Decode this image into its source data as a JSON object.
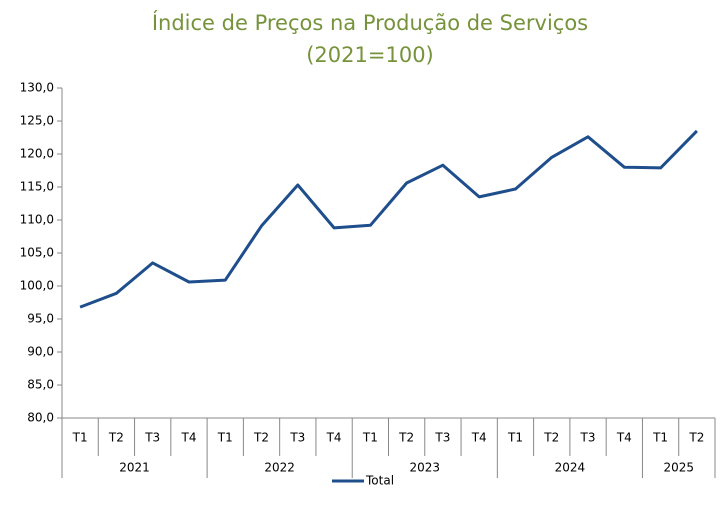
{
  "chart_data": {
    "type": "line",
    "title": "Índice de Preços na Produção de Serviços",
    "subtitle": "(2021=100)",
    "groups": [
      {
        "label": "2021",
        "categories": [
          "T1",
          "T2",
          "T3",
          "T4"
        ]
      },
      {
        "label": "2022",
        "categories": [
          "T1",
          "T2",
          "T3",
          "T4"
        ]
      },
      {
        "label": "2023",
        "categories": [
          "T1",
          "T2",
          "T3",
          "T4"
        ]
      },
      {
        "label": "2024",
        "categories": [
          "T1",
          "T2",
          "T3",
          "T4"
        ]
      },
      {
        "label": "2025",
        "categories": [
          "T1",
          "T2"
        ]
      }
    ],
    "series": [
      {
        "name": "Total",
        "color": "#1f4e8c",
        "values": [
          96.8,
          98.9,
          103.5,
          100.6,
          100.9,
          109.1,
          115.3,
          108.8,
          109.2,
          115.6,
          118.3,
          113.5,
          114.7,
          119.5,
          122.6,
          118.0,
          117.9,
          123.5
        ]
      }
    ],
    "ylim": [
      80,
      130
    ],
    "yticks": [
      {
        "value": 80,
        "label": "80,0"
      },
      {
        "value": 85,
        "label": "85,0"
      },
      {
        "value": 90,
        "label": "90,0"
      },
      {
        "value": 95,
        "label": "95,0"
      },
      {
        "value": 100,
        "label": "100,0"
      },
      {
        "value": 105,
        "label": "105,0"
      },
      {
        "value": 110,
        "label": "110,0"
      },
      {
        "value": 115,
        "label": "115,0"
      },
      {
        "value": 120,
        "label": "120,0"
      },
      {
        "value": 125,
        "label": "125,0"
      },
      {
        "value": 130,
        "label": "130,0"
      }
    ],
    "legend": "bottom",
    "title_color": "#76933c"
  }
}
